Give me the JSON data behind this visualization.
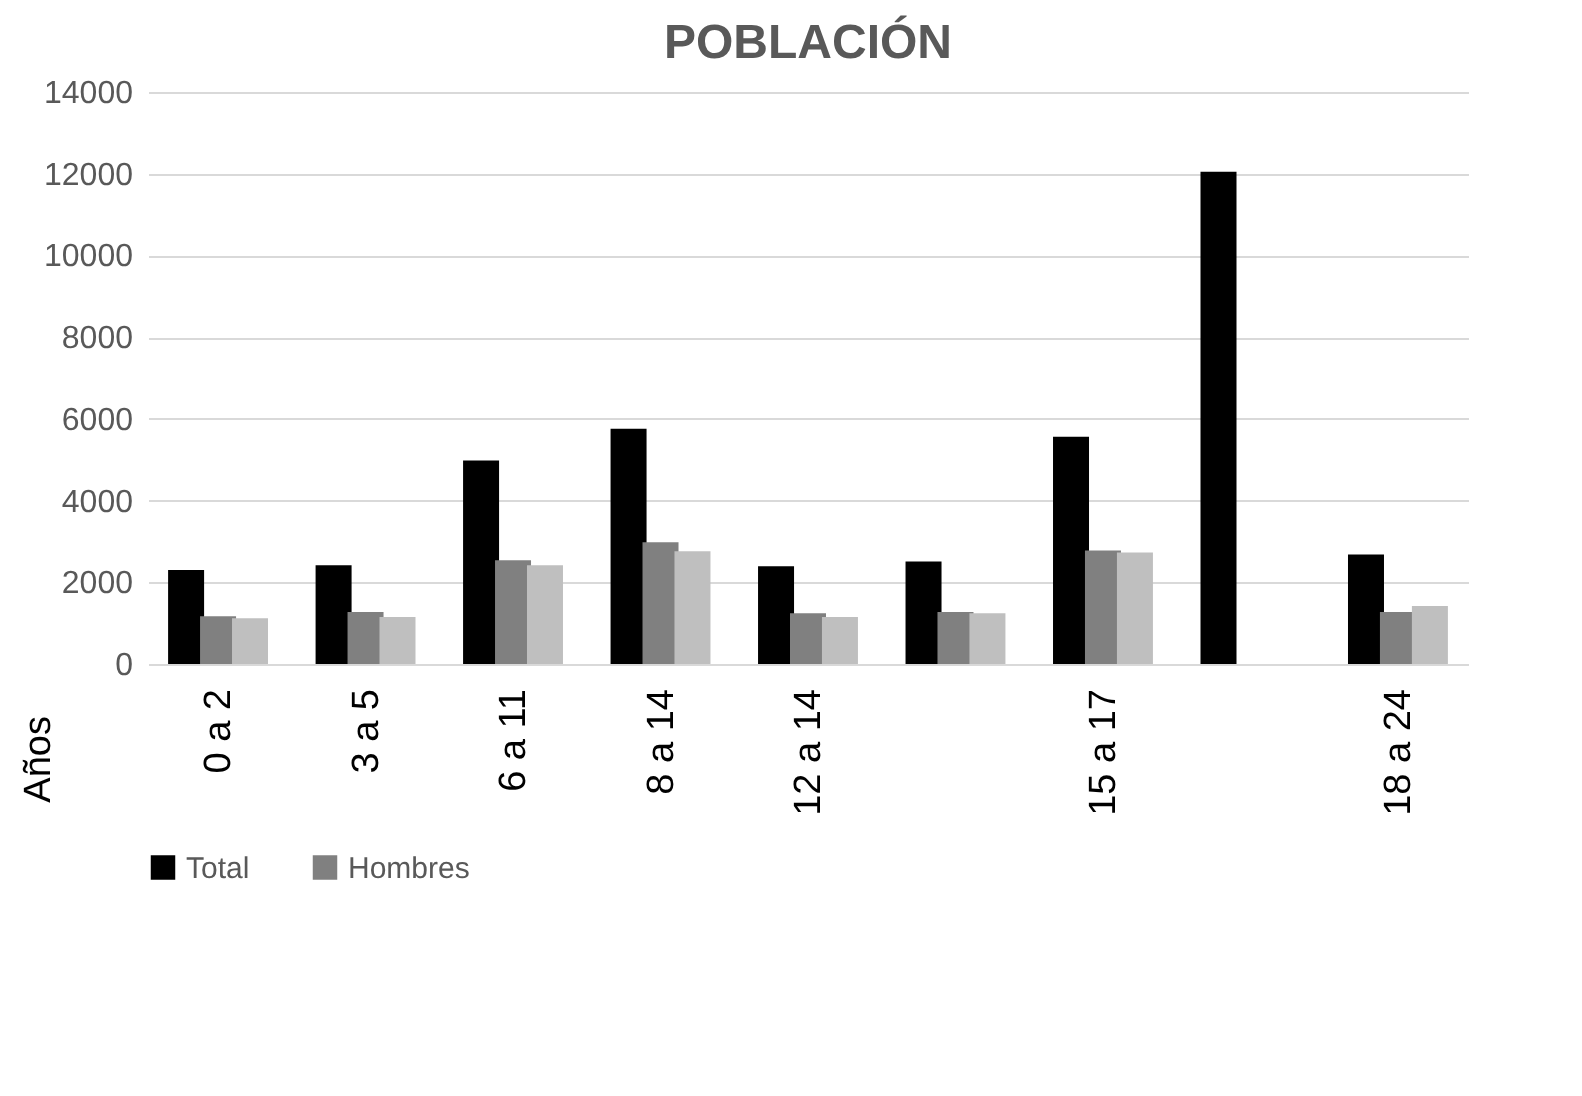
{
  "chart_data": {
    "type": "bar",
    "title": "POBLACIÓN",
    "annotations": [
      "Años"
    ],
    "categories": [
      "0 a 2",
      "3 a 5",
      "6 a 11",
      "8 a 14",
      "12 a 14",
      null,
      "15 a 17",
      null,
      "18 a 24"
    ],
    "series": [
      {
        "name": "Total",
        "color": "#000000",
        "values": [
          2300,
          2420,
          4980,
          5760,
          2390,
          2510,
          5560,
          12050,
          2680
        ]
      },
      {
        "name": "Hombres",
        "color": "#808080",
        "values": [
          1170,
          1270,
          2540,
          2980,
          1240,
          1270,
          2780,
          null,
          1270
        ]
      },
      {
        "color": "#bfbfbf",
        "values": [
          1120,
          1150,
          2420,
          2760,
          1150,
          1240,
          2730,
          null,
          1420
        ]
      }
    ],
    "ylim": [
      0,
      14000
    ],
    "yticks": [
      0,
      2000,
      4000,
      6000,
      8000,
      10000,
      12000,
      14000
    ],
    "grid": "y",
    "legend": "bottom"
  }
}
